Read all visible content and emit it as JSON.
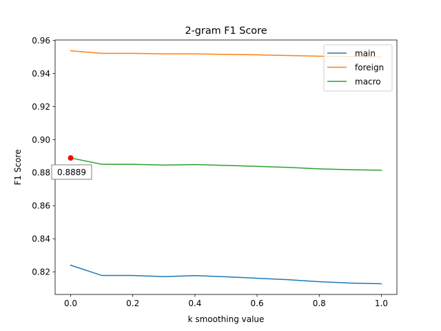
{
  "chart_data": {
    "type": "line",
    "title": "2-gram F1 Score",
    "xlabel": "k smoothing value",
    "ylabel": "F1 Score",
    "xlim": [
      -0.05,
      1.05
    ],
    "ylim": [
      0.8063,
      0.9603
    ],
    "xticks": [
      0.0,
      0.2,
      0.4,
      0.6,
      0.8,
      1.0
    ],
    "xtick_labels": [
      "0.0",
      "0.2",
      "0.4",
      "0.6",
      "0.8",
      "1.0"
    ],
    "yticks": [
      0.82,
      0.84,
      0.86,
      0.88,
      0.9,
      0.92,
      0.94,
      0.96
    ],
    "ytick_labels": [
      "0.82",
      "0.84",
      "0.86",
      "0.88",
      "0.90",
      "0.92",
      "0.94",
      "0.96"
    ],
    "grid": false,
    "legend_position": "top-right",
    "x": [
      0.0,
      0.1,
      0.2,
      0.3,
      0.4,
      0.5,
      0.6,
      0.7,
      0.8,
      0.9,
      1.0
    ],
    "series": [
      {
        "name": "main",
        "color": "#1f77b4",
        "values": [
          0.824,
          0.8178,
          0.8178,
          0.8171,
          0.8177,
          0.817,
          0.8161,
          0.8152,
          0.814,
          0.8132,
          0.8128
        ]
      },
      {
        "name": "foreign",
        "color": "#ff7f0e",
        "values": [
          0.9538,
          0.9522,
          0.9522,
          0.9519,
          0.9519,
          0.9516,
          0.9513,
          0.9509,
          0.9505,
          0.9503,
          0.95
        ]
      },
      {
        "name": "macro",
        "color": "#2ca02c",
        "values": [
          0.8889,
          0.8851,
          0.8851,
          0.8846,
          0.8849,
          0.8844,
          0.8838,
          0.8832,
          0.8823,
          0.8818,
          0.8815
        ]
      }
    ],
    "annotation": {
      "x": 0.0,
      "y": 0.8889,
      "label": "0.8889",
      "marker_color": "#ff0000"
    }
  }
}
